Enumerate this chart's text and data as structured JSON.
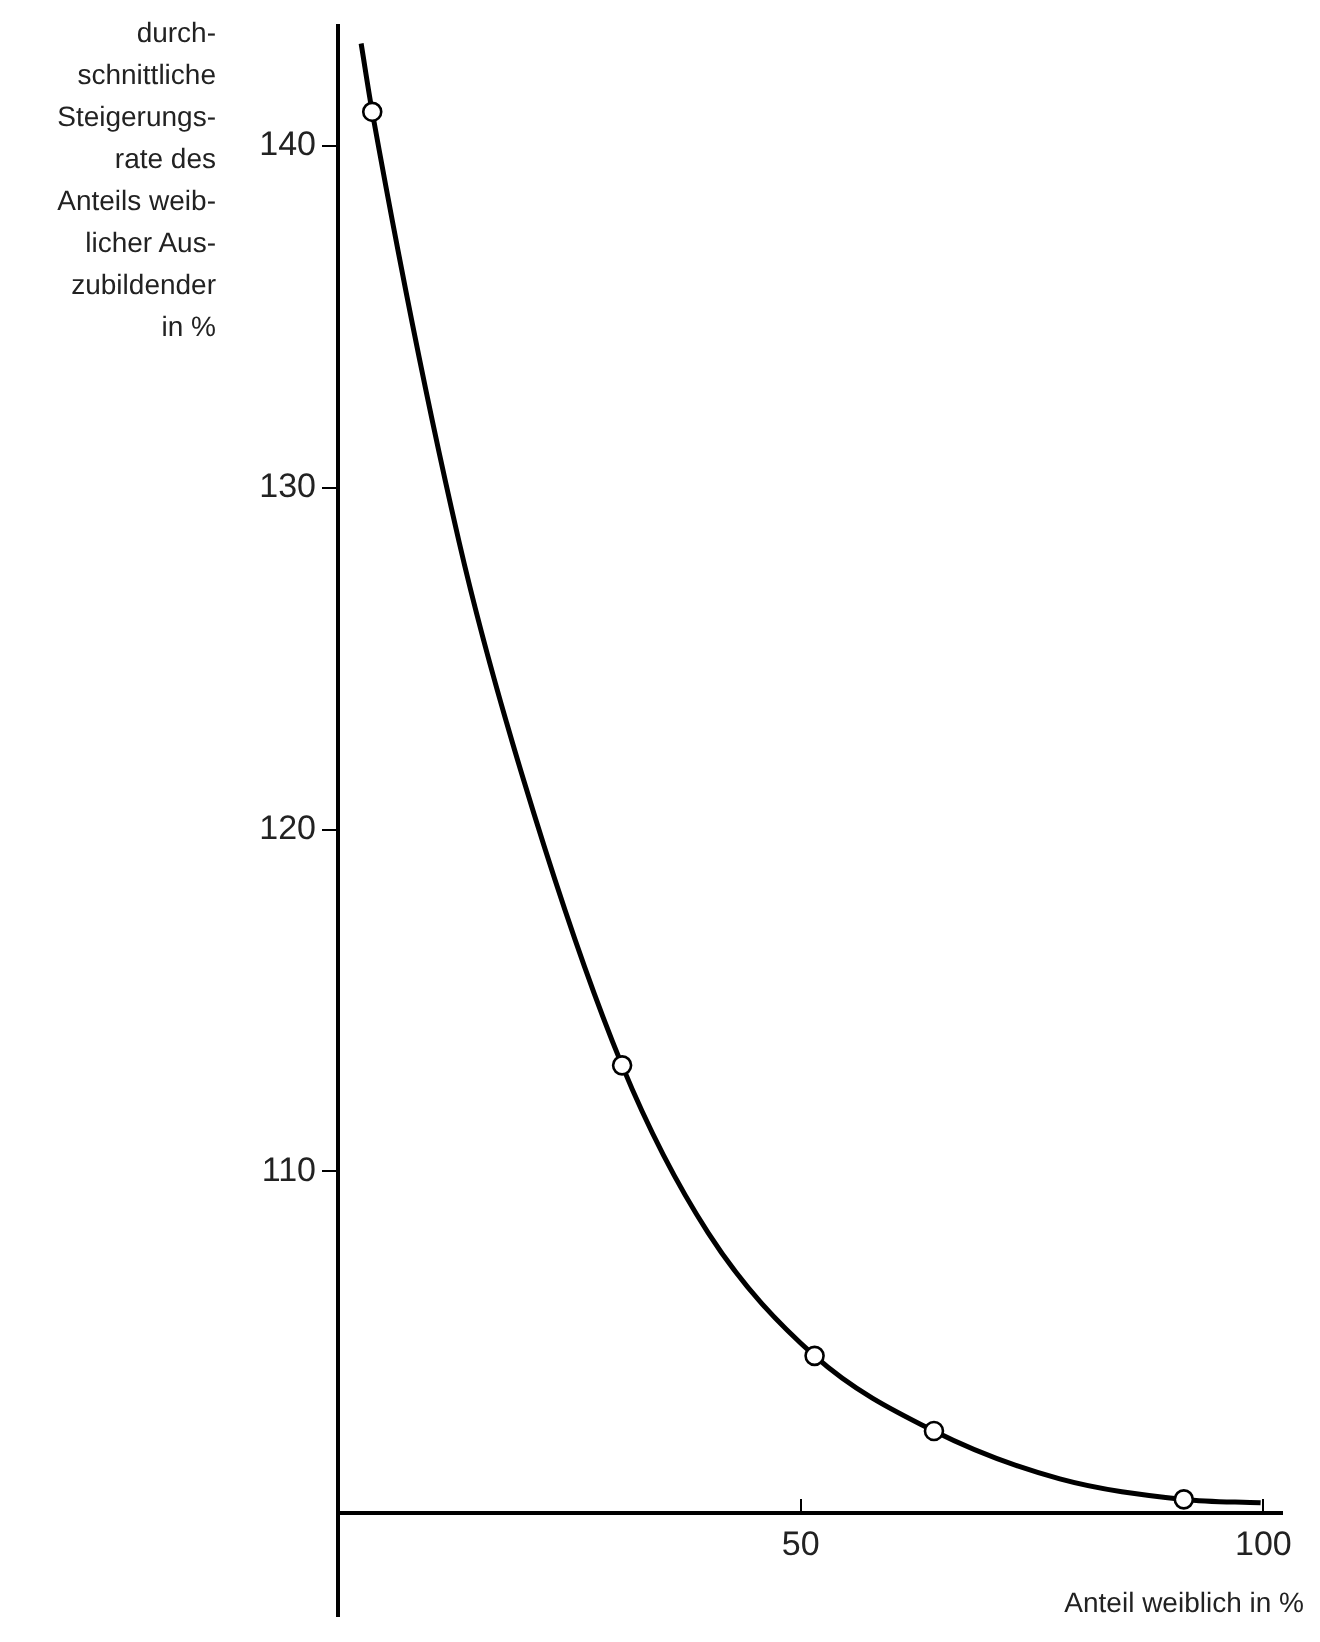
{
  "chart_data": {
    "type": "line",
    "xlabel": "Anteil weiblich in %",
    "ylabel": "durch-\nschnittliche\nSteigerungs-\nrate des\nAnteils weib-\nlicher Aus-\nzubildender\nin %",
    "series": [
      {
        "type": "line",
        "color": "#000000",
        "marker": "none",
        "x": [
          2.5,
          3.7,
          13.1,
          20,
          30.7,
          40,
          51.5,
          64.4,
          78,
          91.4,
          99.7
        ],
        "values": [
          143,
          141,
          128.4,
          121.5,
          113.1,
          108.2,
          104.6,
          102.4,
          101,
          100.4,
          100.3
        ]
      },
      {
        "type": "scatter",
        "color": "#000000",
        "marker": "circle",
        "x": [
          3.7,
          30.7,
          51.5,
          64.4,
          91.4
        ],
        "values": [
          141,
          113.1,
          104.6,
          102.4,
          100.4
        ]
      }
    ],
    "xlim": [
      0,
      102
    ],
    "xticks": [
      50,
      100
    ],
    "ylim": [
      97,
      143.5
    ],
    "yticks": [
      110,
      120,
      130,
      140
    ],
    "grid": false,
    "legend": false
  }
}
